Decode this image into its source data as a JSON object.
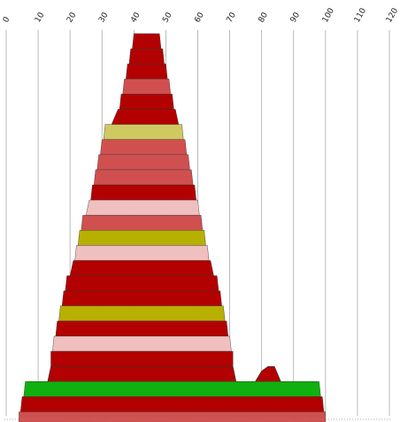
{
  "chart_data": {
    "type": "area",
    "title": "",
    "xlabel": "",
    "ylabel": "",
    "x_axis": {
      "position": "top",
      "xlim": [
        0,
        120
      ],
      "ticks": [
        0,
        10,
        20,
        30,
        40,
        50,
        60,
        70,
        80,
        90,
        100,
        110,
        120
      ],
      "tick_labels": [
        "0",
        "10",
        "20",
        "30",
        "40",
        "50",
        "60",
        "70",
        "80",
        "90",
        "100",
        "110",
        "120"
      ],
      "tick_label_rotation": -60
    },
    "grid": {
      "vertical": true,
      "horizontal": false
    },
    "legend": "none",
    "colors": {
      "dark_red": "#b30000",
      "red": "#d05050",
      "pink": "#f0c0c0",
      "olive": "#b8b000",
      "yellow_olive": "#d0c860",
      "green": "#10b010",
      "grid": "#aaaaaa",
      "outline": "#333333"
    },
    "bands": [
      {
        "left": 40,
        "right": 48,
        "color_key": "dark_red"
      },
      {
        "left": 39,
        "right": 49,
        "color_key": "dark_red"
      },
      {
        "left": 38,
        "right": 50,
        "color_key": "dark_red"
      },
      {
        "left": 37,
        "right": 51,
        "color_key": "red"
      },
      {
        "left": 36,
        "right": 52,
        "color_key": "dark_red"
      },
      {
        "left": 35,
        "right": 53,
        "color_key": "dark_red"
      },
      {
        "left": 31,
        "right": 55,
        "color_key": "yellow_olive"
      },
      {
        "left": 30,
        "right": 56,
        "color_key": "red"
      },
      {
        "left": 29,
        "right": 57,
        "color_key": "red"
      },
      {
        "left": 28,
        "right": 58,
        "color_key": "red"
      },
      {
        "left": 27,
        "right": 59,
        "color_key": "dark_red"
      },
      {
        "left": 26,
        "right": 60,
        "color_key": "pink"
      },
      {
        "left": 24,
        "right": 61,
        "color_key": "red"
      },
      {
        "left": 23,
        "right": 62,
        "color_key": "olive"
      },
      {
        "left": 22,
        "right": 63,
        "color_key": "pink"
      },
      {
        "left": 21,
        "right": 64,
        "color_key": "dark_red"
      },
      {
        "left": 19,
        "right": 66,
        "color_key": "dark_red"
      },
      {
        "left": 18,
        "right": 67,
        "color_key": "dark_red"
      },
      {
        "left": 17,
        "right": 68,
        "color_key": "olive"
      },
      {
        "left": 16,
        "right": 69,
        "color_key": "dark_red"
      },
      {
        "left": 15,
        "right": 70,
        "color_key": "pink"
      },
      {
        "left": 14,
        "right": 71,
        "color_key": "dark_red"
      },
      {
        "left": 6,
        "right": 98,
        "color_key": "green"
      },
      {
        "left": 5,
        "right": 99,
        "color_key": "dark_red"
      },
      {
        "left": 4,
        "right": 100,
        "color_key": "red"
      }
    ],
    "upper_profile_band": {
      "color_key": "dark_red",
      "points": [
        [
          7,
          0
        ],
        [
          13,
          0
        ],
        [
          14,
          1
        ],
        [
          71,
          1
        ],
        [
          72,
          0
        ],
        [
          78,
          0
        ],
        [
          80,
          0.7
        ],
        [
          82,
          1
        ],
        [
          84,
          1
        ],
        [
          86,
          0
        ],
        [
          97,
          0
        ]
      ]
    }
  }
}
